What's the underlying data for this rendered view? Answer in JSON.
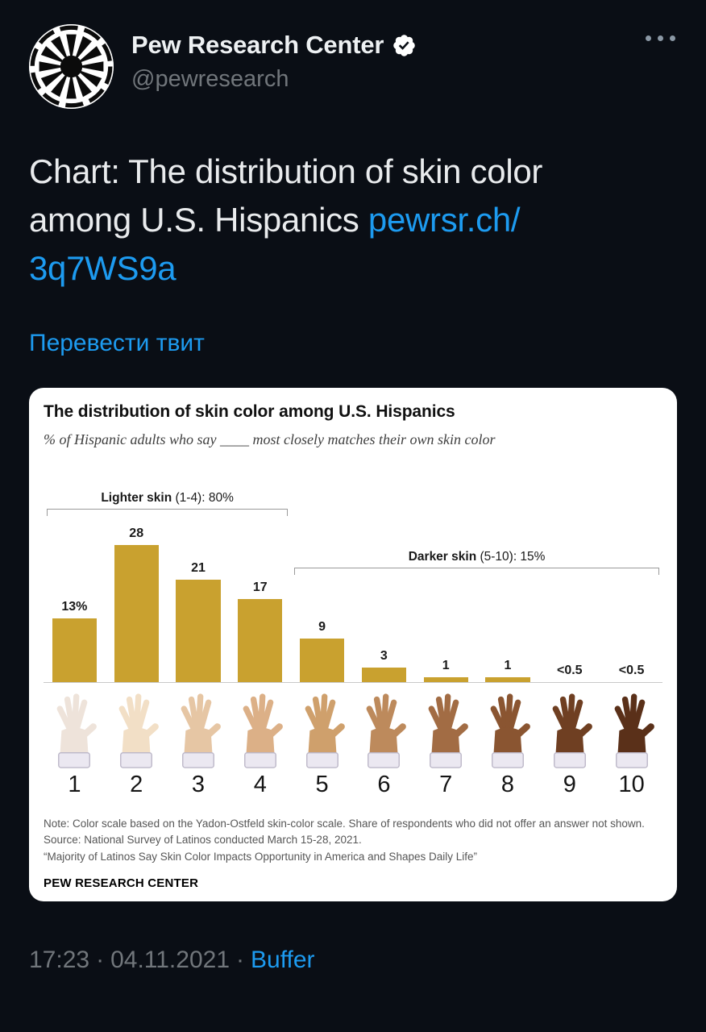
{
  "theme": {
    "background": "#0a0e15",
    "text": "#e7e9ea",
    "secondary": "#71767b",
    "link": "#1d9bf0",
    "card_bg": "#ffffff"
  },
  "header": {
    "name": "Pew Research Center",
    "handle": "@pewresearch"
  },
  "tweet": {
    "text": "Chart: The distribution of skin color among U.S. Hispanics ",
    "link_part1": "pewrsr.ch/",
    "link_part2": "3q7WS9a",
    "translate_label": "Перевести твит"
  },
  "chart_data": {
    "type": "bar",
    "title": "The distribution of skin color among U.S. Hispanics",
    "subtitle": "% of Hispanic adults who say ____ most closely matches their own skin color",
    "categories": [
      "1",
      "2",
      "3",
      "4",
      "5",
      "6",
      "7",
      "8",
      "9",
      "10"
    ],
    "values": [
      13,
      28,
      21,
      17,
      9,
      3,
      1,
      1,
      0.4,
      0.4
    ],
    "value_labels": [
      "13%",
      "28",
      "21",
      "17",
      "9",
      "3",
      "1",
      "1",
      "<0.5",
      "<0.5"
    ],
    "ylim": [
      0,
      30
    ],
    "bar_color": "#c9a12f",
    "grid": false,
    "annotations": [
      {
        "bold": "Lighter skin",
        "text": " (1-4): 80%",
        "start": 0,
        "end": 3,
        "line_value": 34
      },
      {
        "bold": "Darker skin",
        "text": " (5-10): 15%",
        "start": 4,
        "end": 9,
        "line_value": 22
      }
    ],
    "skin_tones": [
      "#eee3da",
      "#f2dfc6",
      "#e6c6a4",
      "#dcb087",
      "#cfa06c",
      "#bd8a5c",
      "#a26c44",
      "#8a5531",
      "#6f3f22",
      "#5a3019"
    ],
    "note_lines": [
      "Note: Color scale based on the Yadon-Ostfeld skin-color scale. Share of respondents who did not offer an answer not shown.",
      "Source: National Survey of Latinos conducted March 15-28, 2021.",
      "“Majority of Latinos Say Skin Color Impacts Opportunity in America and Shapes Daily Life”"
    ],
    "brand": "PEW RESEARCH CENTER"
  },
  "footer": {
    "time": "17:23",
    "date": "04.11.2021",
    "separator": "·",
    "via": "Buffer"
  }
}
